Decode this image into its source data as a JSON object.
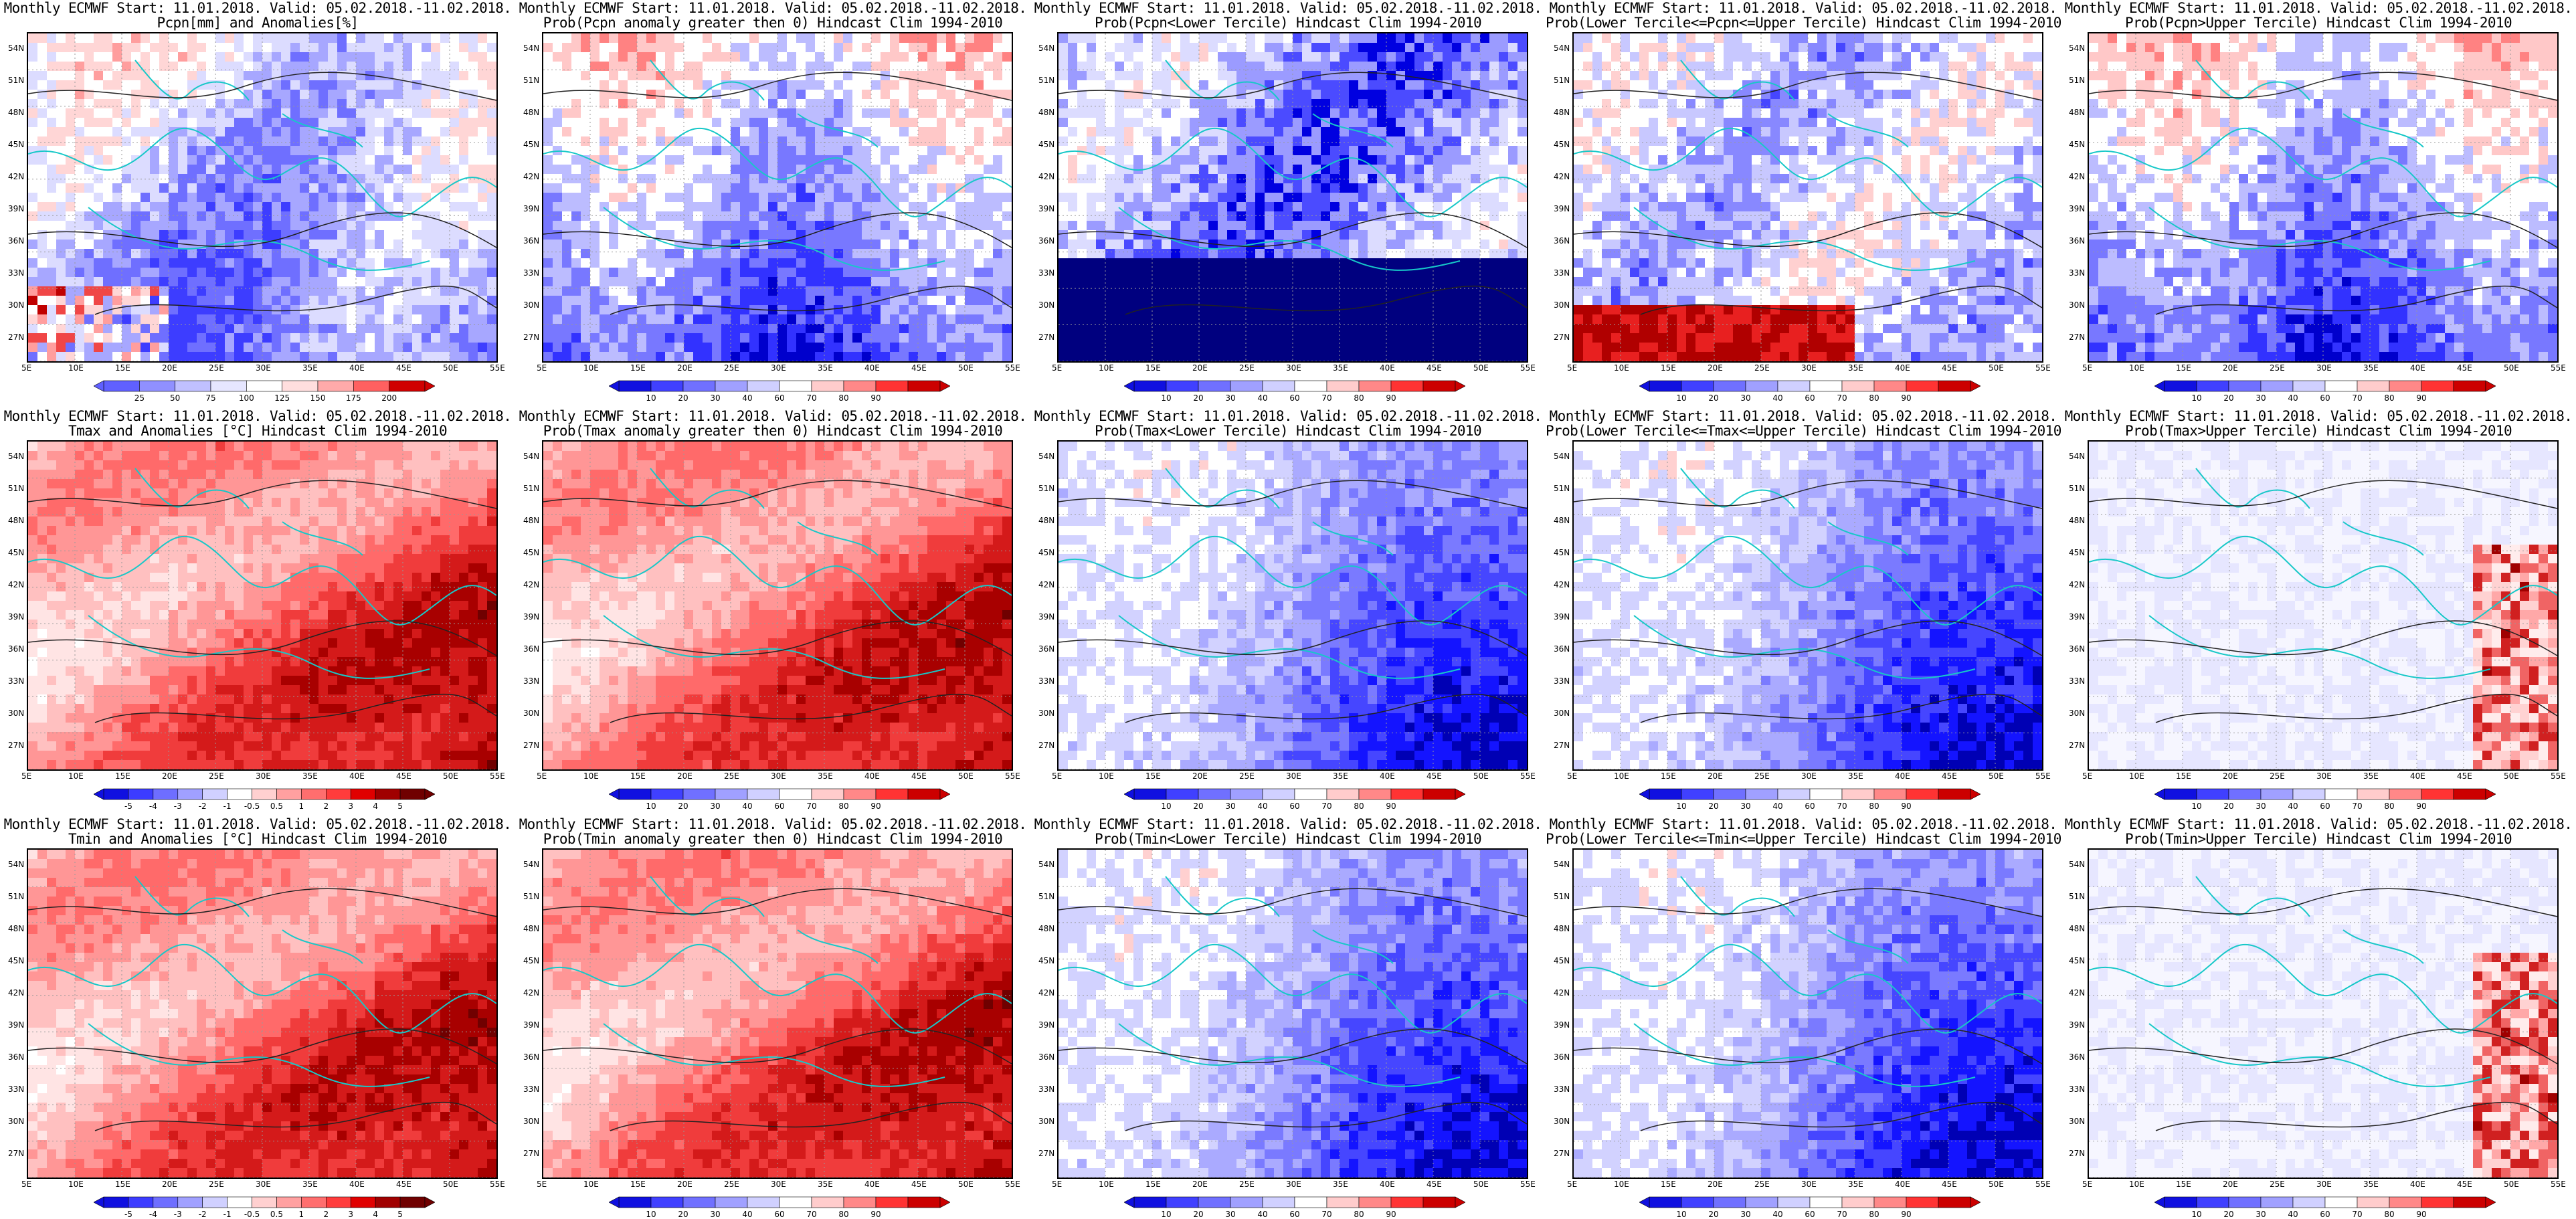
{
  "lat_labels": [
    "54N",
    "51N",
    "48N",
    "45N",
    "42N",
    "39N",
    "36N",
    "33N",
    "30N",
    "27N"
  ],
  "lon_labels": [
    "5E",
    "10E",
    "15E",
    "20E",
    "25E",
    "30E",
    "35E",
    "40E",
    "45E",
    "50E",
    "55E"
  ],
  "panels": [
    {
      "id": "pcpn-anom",
      "line1": "Monthly ECMWF Start: 11.01.2018. Valid: 05.02.2018.-11.02.2018.",
      "line2": "Pcpn[mm] and Anomalies[%]",
      "line3": "",
      "scheme": "pcpn",
      "colorbar": [
        "25",
        "50",
        "75",
        "100",
        "125",
        "150",
        "175",
        "200"
      ]
    },
    {
      "id": "pcpn-prob-gt0",
      "line1": "Monthly ECMWF Start: 11.01.2018. Valid: 05.02.2018.-11.02.2018.",
      "line2": "Prob(Pcpn anomaly greater then 0) Hindcast Clim 1994-2010",
      "line3": "",
      "scheme": "probblue",
      "colorbar": [
        "10",
        "20",
        "30",
        "40",
        "60",
        "70",
        "80",
        "90"
      ]
    },
    {
      "id": "pcpn-prob-lower",
      "line1": "Monthly ECMWF Start: 11.01.2018. Valid: 05.02.2018.-11.02.2018.",
      "line2": "Prob(Pcpn<Lower Tercile) Hindcast Clim 1994-2010",
      "line3": "",
      "scheme": "deepblue",
      "colorbar": [
        "10",
        "20",
        "30",
        "40",
        "60",
        "70",
        "80",
        "90"
      ]
    },
    {
      "id": "pcpn-prob-middle",
      "line1": "Monthly ECMWF Start: 11.01.2018. Valid: 05.02.2018.-11.02.2018.",
      "line2": "Prob(Lower Tercile<=Pcpn<=Upper Tercile) Hindcast Clim 1994-2010",
      "line3": "",
      "scheme": "midred",
      "colorbar": [
        "10",
        "20",
        "30",
        "40",
        "60",
        "70",
        "80",
        "90"
      ]
    },
    {
      "id": "pcpn-prob-upper",
      "line1": "Monthly ECMWF Start: 11.01.2018. Valid: 05.02.2018.-11.02.2018.",
      "line2": "Prob(Pcpn>Upper Tercile) Hindcast Clim 1994-2010",
      "line3": "",
      "scheme": "probblue",
      "colorbar": [
        "10",
        "20",
        "30",
        "40",
        "60",
        "70",
        "80",
        "90"
      ]
    },
    {
      "id": "tmax-anom",
      "line1": "Monthly ECMWF Start: 11.01.2018. Valid: 05.02.2018.-11.02.2018.",
      "line2": "Tmax and Anomalies [°C] Hindcast Clim 1994-2010",
      "line3": "",
      "scheme": "warm",
      "colorbar": [
        "-5",
        "-4",
        "-3",
        "-2",
        "-1",
        "-0.5",
        "0.5",
        "1",
        "2",
        "3",
        "4",
        "5"
      ]
    },
    {
      "id": "tmax-prob-gt0",
      "line1": "Monthly ECMWF Start: 11.01.2018. Valid: 05.02.2018.-11.02.2018.",
      "line2": "Prob(Tmax anomaly greater then 0) Hindcast Clim 1994-2010",
      "line3": "",
      "scheme": "warm",
      "colorbar": [
        "10",
        "20",
        "30",
        "40",
        "60",
        "70",
        "80",
        "90"
      ]
    },
    {
      "id": "tmax-prob-lower",
      "line1": "Monthly ECMWF Start: 11.01.2018. Valid: 05.02.2018.-11.02.2018.",
      "line2": "Prob(Tmax<Lower Tercile) Hindcast Clim 1994-2010",
      "line3": "",
      "scheme": "blue",
      "colorbar": [
        "10",
        "20",
        "30",
        "40",
        "60",
        "70",
        "80",
        "90"
      ]
    },
    {
      "id": "tmax-prob-middle",
      "line1": "Monthly ECMWF Start: 11.01.2018. Valid: 05.02.2018.-11.02.2018.",
      "line2": "Prob(Lower Tercile<=Tmax<=Upper Tercile) Hindcast Clim 1994-2010",
      "line3": "",
      "scheme": "blue",
      "colorbar": [
        "10",
        "20",
        "30",
        "40",
        "60",
        "70",
        "80",
        "90"
      ]
    },
    {
      "id": "tmax-prob-upper",
      "line1": "Monthly ECMWF Start: 11.01.2018. Valid: 05.02.2018.-11.02.2018.",
      "line2": "Prob(Tmax>Upper Tercile) Hindcast Clim 1994-2010",
      "line3": "",
      "scheme": "paleredspot",
      "colorbar": [
        "10",
        "20",
        "30",
        "40",
        "60",
        "70",
        "80",
        "90"
      ]
    },
    {
      "id": "tmin-anom",
      "line1": "Monthly ECMWF Start: 11.01.2018. Valid: 05.02.2018.-11.02.2018.",
      "line2": "Tmin and Anomalies [°C] Hindcast Clim 1994-2010",
      "line3": "",
      "scheme": "warm",
      "colorbar": [
        "-5",
        "-4",
        "-3",
        "-2",
        "-1",
        "-0.5",
        "0.5",
        "1",
        "2",
        "3",
        "4",
        "5"
      ]
    },
    {
      "id": "tmin-prob-gt0",
      "line1": "Monthly ECMWF Start: 11.01.2018. Valid: 05.02.2018.-11.02.2018.",
      "line2": "Prob(Tmin anomaly greater then 0) Hindcast Clim 1994-2010",
      "line3": "",
      "scheme": "warm",
      "colorbar": [
        "10",
        "20",
        "30",
        "40",
        "60",
        "70",
        "80",
        "90"
      ]
    },
    {
      "id": "tmin-prob-lower",
      "line1": "Monthly ECMWF Start: 11.01.2018. Valid: 05.02.2018.-11.02.2018.",
      "line2": "Prob(Tmin<Lower Tercile) Hindcast Clim 1994-2010",
      "line3": "",
      "scheme": "blue",
      "colorbar": [
        "10",
        "20",
        "30",
        "40",
        "60",
        "70",
        "80",
        "90"
      ]
    },
    {
      "id": "tmin-prob-middle",
      "line1": "Monthly ECMWF Start: 11.01.2018. Valid: 05.02.2018.-11.02.2018.",
      "line2": "Prob(Lower Tercile<=Tmin<=Upper Tercile) Hindcast Clim 1994-2010",
      "line3": "",
      "scheme": "blue",
      "colorbar": [
        "10",
        "20",
        "30",
        "40",
        "60",
        "70",
        "80",
        "90"
      ]
    },
    {
      "id": "tmin-prob-upper",
      "line1": "Monthly ECMWF Start: 11.01.2018. Valid: 05.02.2018.-11.02.2018.",
      "line2": "Prob(Tmin>Upper Tercile) Hindcast Clim 1994-2010",
      "line3": "",
      "scheme": "paleredspot",
      "colorbar": [
        "10",
        "20",
        "30",
        "40",
        "60",
        "70",
        "80",
        "90"
      ]
    }
  ]
}
